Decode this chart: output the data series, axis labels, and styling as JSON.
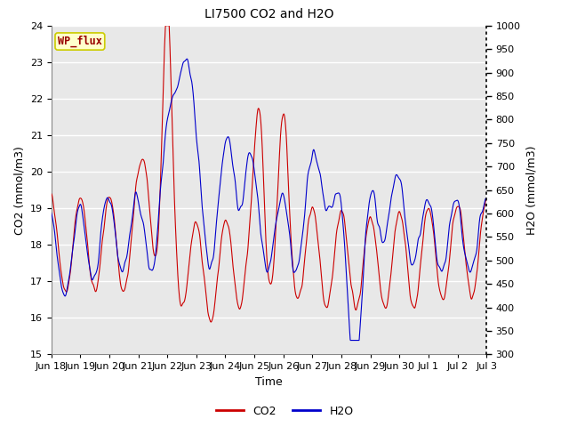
{
  "title": "LI7500 CO2 and H2O",
  "xlabel": "Time",
  "ylabel_left": "CO2 (mmol/m3)",
  "ylabel_right": "H2O (mmol/m3)",
  "co2_color": "#CC0000",
  "h2o_color": "#0000CC",
  "ylim_left": [
    15.0,
    24.0
  ],
  "ylim_right": [
    300,
    1000
  ],
  "fig_bg": "#FFFFFF",
  "plot_bg": "#E8E8E8",
  "annotation_text": "WP_flux",
  "annotation_bg": "#FFFFCC",
  "annotation_fg": "#990000",
  "annotation_border": "#CCCC00",
  "x_tick_labels": [
    "Jun 18",
    "Jun 19",
    "Jun 20",
    "Jun 21",
    "Jun 22",
    "Jun 23",
    "Jun 24",
    "Jun 25",
    "Jun 26",
    "Jun 27",
    "Jun 28",
    "Jun 29",
    "Jun 30",
    "Jul 1",
    "Jul 2",
    "Jul 3"
  ],
  "right_yticks": [
    300,
    350,
    400,
    450,
    500,
    550,
    600,
    650,
    700,
    750,
    800,
    850,
    900,
    950,
    1000
  ],
  "left_yticks": [
    15.0,
    16.0,
    17.0,
    18.0,
    19.0,
    20.0,
    21.0,
    22.0,
    23.0,
    24.0
  ],
  "grid_color": "#FFFFFF",
  "tick_label_fontsize": 8,
  "axis_label_fontsize": 9,
  "title_fontsize": 10,
  "legend_fontsize": 9,
  "line_width": 0.8
}
